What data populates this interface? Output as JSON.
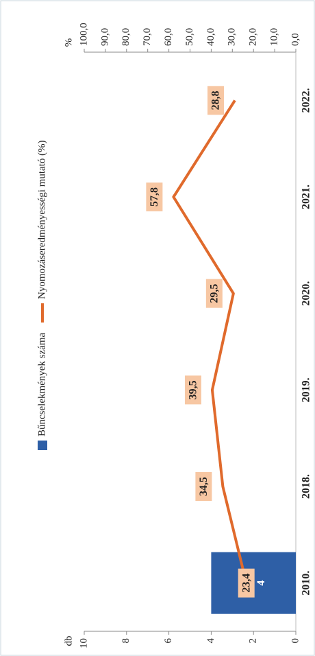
{
  "chart_data": {
    "type": "combo",
    "categories": [
      "2010.",
      "2018.",
      "2019.",
      "2020.",
      "2021.",
      "2022."
    ],
    "ylabel": "db",
    "y2label": "%",
    "ylim": [
      0,
      10
    ],
    "yticks": [
      0,
      2,
      4,
      6,
      8,
      10
    ],
    "y2lim": [
      0,
      100
    ],
    "y2ticks": [
      {
        "value": 0,
        "label": "0,0"
      },
      {
        "value": 10,
        "label": "10,0"
      },
      {
        "value": 20,
        "label": "20,0"
      },
      {
        "value": 30,
        "label": "30,0"
      },
      {
        "value": 40,
        "label": "40,0"
      },
      {
        "value": 50,
        "label": "50,0"
      },
      {
        "value": 60,
        "label": "60,0"
      },
      {
        "value": 70,
        "label": "70,0"
      },
      {
        "value": 80,
        "label": "80,0"
      },
      {
        "value": 90,
        "label": "90,0"
      },
      {
        "value": 100,
        "label": "100,0"
      }
    ],
    "legend": "top",
    "series": [
      {
        "name": "Bűncselekmények száma",
        "type": "bar",
        "color": "#2e5fa6",
        "values": [
          4,
          null,
          null,
          null,
          null,
          null
        ]
      },
      {
        "name": "Nyomozáseredményességi mutató (%)",
        "type": "line",
        "axis": "y2",
        "color": "#e06a2c",
        "values": [
          23.4,
          34.5,
          39.5,
          29.5,
          57.8,
          28.8
        ],
        "value_labels": [
          "23,4",
          "34,5",
          "39,5",
          "29,5",
          "57,8",
          "28,8"
        ]
      }
    ]
  }
}
